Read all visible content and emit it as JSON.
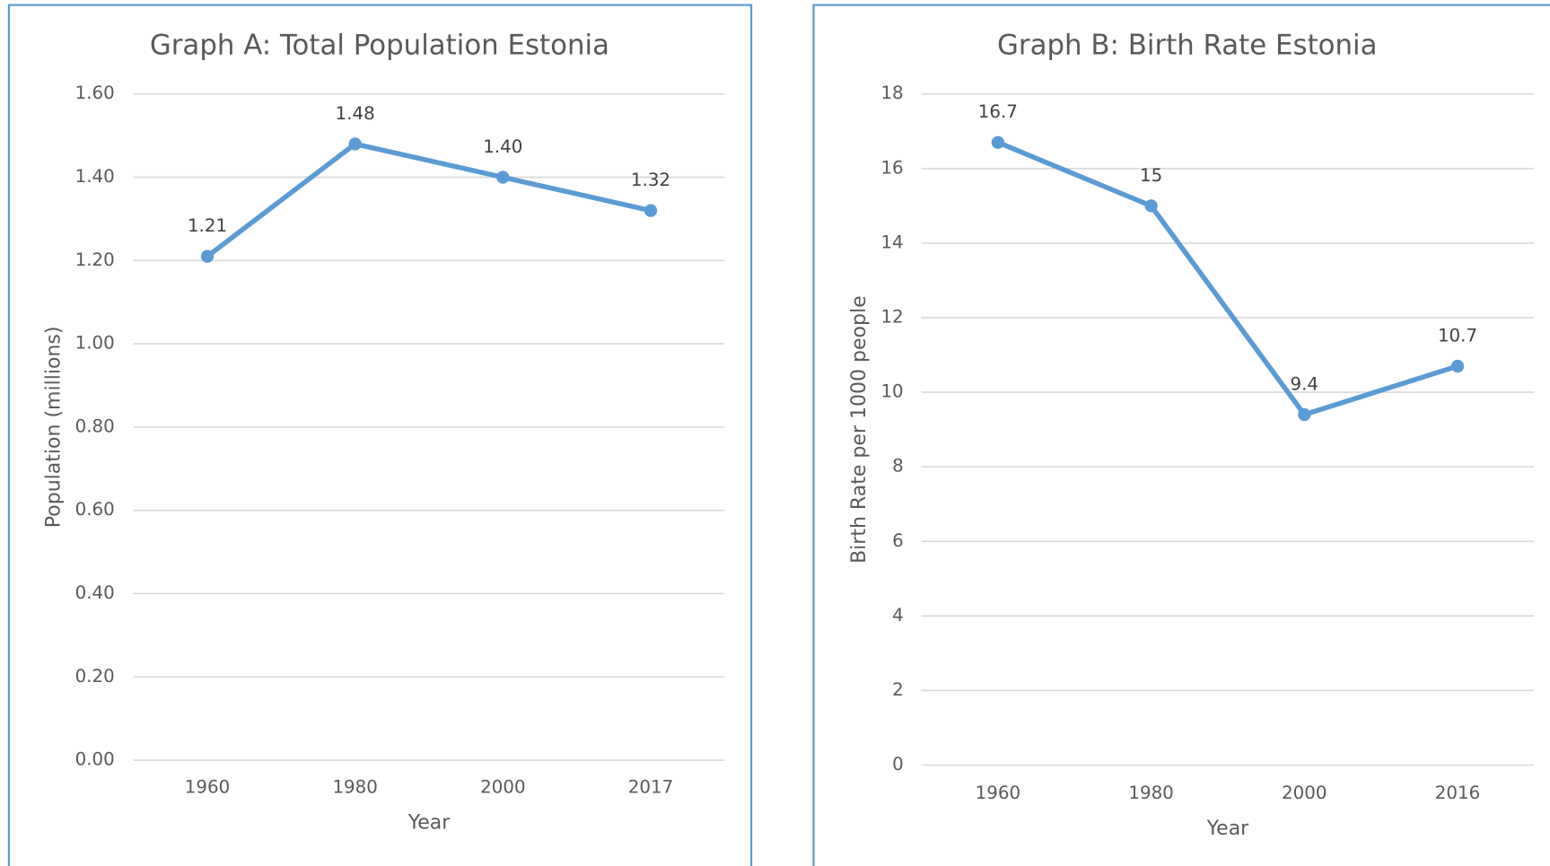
{
  "chart_data": [
    {
      "type": "line",
      "title": "Graph A: Total Population Estonia",
      "xlabel": "Year",
      "ylabel": "Population (millions)",
      "categories": [
        "1960",
        "1980",
        "2000",
        "2017"
      ],
      "values": [
        1.21,
        1.48,
        1.4,
        1.32
      ],
      "value_labels": [
        "1.21",
        "1.48",
        "1.40",
        "1.32"
      ],
      "color": "#5b9bd5",
      "ylim": [
        0,
        1.6
      ],
      "yticks": [
        {
          "value": 0,
          "label": "0.00"
        },
        {
          "value": 0.2,
          "label": "0.20"
        },
        {
          "value": 0.4,
          "label": "0.40"
        },
        {
          "value": 0.6,
          "label": "0.60"
        },
        {
          "value": 0.8,
          "label": "0.80"
        },
        {
          "value": 1.0,
          "label": "1.00"
        },
        {
          "value": 1.2,
          "label": "1.20"
        },
        {
          "value": 1.4,
          "label": "1.40"
        },
        {
          "value": 1.6,
          "label": "1.60"
        }
      ],
      "grid": true
    },
    {
      "type": "line",
      "title": "Graph B: Birth Rate Estonia",
      "xlabel": "Year",
      "ylabel": "Birth Rate per 1000 people",
      "categories": [
        "1960",
        "1980",
        "2000",
        "2016"
      ],
      "values": [
        16.7,
        15,
        9.4,
        10.7
      ],
      "color": "#5b9bd5",
      "ylim": [
        0,
        18
      ],
      "yticks": [
        0,
        2,
        4,
        6,
        8,
        10,
        12,
        14,
        16,
        18
      ],
      "grid": true
    }
  ]
}
